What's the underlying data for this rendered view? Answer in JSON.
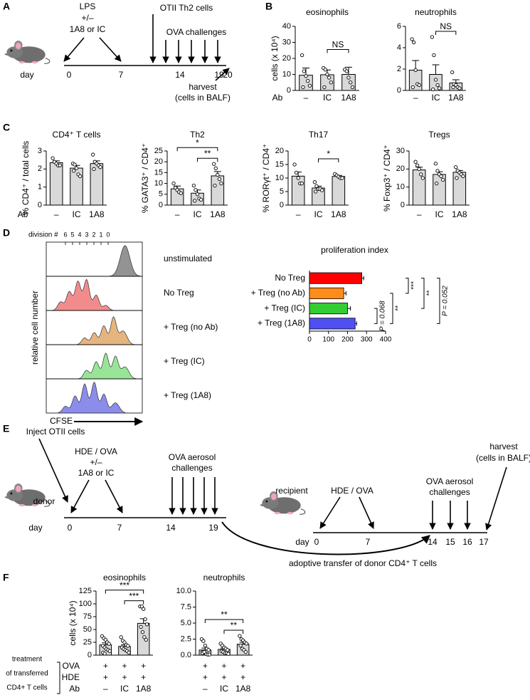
{
  "panel_letters": [
    "A",
    "B",
    "C",
    "D",
    "E",
    "F"
  ],
  "schematic_a": {
    "agent": "LPS",
    "plus_minus": "+/–",
    "treatment": "1A8 or IC",
    "cells": "OTII Th2 cells",
    "challenges": "OVA challenges",
    "day": "day",
    "days": [
      0,
      7,
      14,
      19,
      20
    ],
    "harvest": "harvest",
    "harvest_note": "(cells in BALF)"
  },
  "ab_label_b": "Ab",
  "ab_label_c": "Ab",
  "chart_data": [
    {
      "type": "bar",
      "title": "eosinophils",
      "ylabel": "cells (x 10⁴)",
      "categories": [
        "–",
        "IC",
        "1A8"
      ],
      "values": [
        9.5,
        9.8,
        10
      ],
      "errors": [
        4.5,
        3,
        4.5
      ],
      "points": [
        [
          22,
          12,
          9,
          6,
          3,
          2
        ],
        [
          14,
          13,
          10,
          8,
          5,
          2
        ],
        [
          13,
          12,
          8,
          5,
          2
        ]
      ],
      "ylim": [
        0,
        40
      ],
      "yticks": [
        0,
        10,
        20,
        30,
        40
      ],
      "color": "#d9d9d9",
      "comparisons": [
        {
          "pair": [
            "IC",
            "1A8"
          ],
          "label": "NS"
        }
      ]
    },
    {
      "type": "bar",
      "title": "neutrophils",
      "categories": [
        "–",
        "IC",
        "1A8"
      ],
      "values": [
        1.9,
        1.5,
        0.7
      ],
      "errors": [
        0.9,
        0.9,
        0.3
      ],
      "points": [
        [
          4.8,
          4.5,
          1.9,
          0.6,
          0.5,
          0.3
        ],
        [
          5,
          3.3,
          1,
          0.5,
          0.2,
          0.1
        ],
        [
          1.7,
          0.6,
          0.5,
          0.3,
          0.2,
          0.3
        ]
      ],
      "ylim": [
        0,
        6
      ],
      "yticks": [
        0,
        2,
        4,
        6
      ],
      "color": "#d9d9d9",
      "comparisons": [
        {
          "pair": [
            "IC",
            "1A8"
          ],
          "label": "NS"
        }
      ]
    },
    {
      "type": "bar",
      "title": "CD4⁺ T cells",
      "ylabel": "% CD4⁺ / total cells",
      "categories": [
        "–",
        "IC",
        "1A8"
      ],
      "values": [
        2.35,
        2.05,
        2.3
      ],
      "errors": [
        0.1,
        0.15,
        0.15
      ],
      "points": [
        [
          2.6,
          2.4,
          2.3,
          2.2,
          2.2
        ],
        [
          2.3,
          2.25,
          2.05,
          1.7,
          1.6,
          1.9
        ],
        [
          2.8,
          2.4,
          2.3,
          2.2,
          2.1,
          2.0
        ]
      ],
      "ylim": [
        0,
        3
      ],
      "yticks": [
        0,
        1,
        2,
        3
      ],
      "color": "#d9d9d9",
      "comparisons": []
    },
    {
      "type": "bar",
      "title": "Th2",
      "ylabel": "% GATA3⁺ / CD4⁺",
      "categories": [
        "–",
        "IC",
        "1A8"
      ],
      "values": [
        7.5,
        5.5,
        13.5
      ],
      "errors": [
        1.3,
        1.5,
        2
      ],
      "points": [
        [
          10,
          8,
          7,
          6,
          5.5
        ],
        [
          9,
          7,
          5,
          3,
          2.5,
          2
        ],
        [
          19,
          17,
          14,
          12,
          10,
          9
        ]
      ],
      "ylim": [
        0,
        25
      ],
      "yticks": [
        0,
        5,
        10,
        15,
        20,
        25
      ],
      "color": "#d9d9d9",
      "comparisons": [
        {
          "pair": [
            "IC",
            "1A8"
          ],
          "label": "**"
        },
        {
          "pair": [
            "–",
            "1A8"
          ],
          "label": "*"
        }
      ]
    },
    {
      "type": "bar",
      "title": "Th17",
      "ylabel": "% RORγt⁺ / CD4⁺",
      "categories": [
        "–",
        "IC",
        "1A8"
      ],
      "values": [
        10.7,
        6.3,
        10.6
      ],
      "errors": [
        1.5,
        0.7,
        0.4
      ],
      "points": [
        [
          15,
          12,
          10,
          8,
          8
        ],
        [
          8.5,
          7,
          6,
          6,
          5.5,
          5
        ],
        [
          11.5,
          11,
          10.5,
          10,
          10
        ]
      ],
      "ylim": [
        0,
        20
      ],
      "yticks": [
        0,
        5,
        10,
        15,
        20
      ],
      "color": "#d9d9d9",
      "comparisons": [
        {
          "pair": [
            "IC",
            "1A8"
          ],
          "label": "*"
        }
      ]
    },
    {
      "type": "bar",
      "title": "Tregs",
      "ylabel": "% Foxp3⁺ / CD4⁺",
      "categories": [
        "–",
        "IC",
        "1A8"
      ],
      "values": [
        19.5,
        17,
        18.2
      ],
      "errors": [
        1.5,
        1.5,
        1
      ],
      "points": [
        [
          24,
          22,
          20,
          17,
          15
        ],
        [
          23,
          19,
          17,
          16,
          14,
          12
        ],
        [
          21,
          19,
          18,
          17,
          16,
          15
        ]
      ],
      "ylim": [
        0,
        30
      ],
      "yticks": [
        0,
        10,
        20,
        30
      ],
      "color": "#d9d9d9",
      "comparisons": []
    },
    {
      "type": "hbar",
      "title": "proliferation index",
      "categories": [
        "No Treg",
        "+ Treg (no Ab)",
        "+ Treg (IC)",
        "+ Treg (1A8)"
      ],
      "values": [
        275,
        180,
        200,
        240
      ],
      "errors": [
        10,
        12,
        15,
        8
      ],
      "colors": [
        "#ff0000",
        "#ff8c1a",
        "#33cc33",
        "#5050f0"
      ],
      "xlim": [
        0,
        400
      ],
      "xticks": [
        0,
        100,
        200,
        300,
        400
      ],
      "comparisons": [
        {
          "pair": [
            "+ Treg (IC)",
            "+ Treg (1A8)"
          ],
          "label": "P = 0.068"
        },
        {
          "pair": [
            "+ Treg (no Ab)",
            "+ Treg (1A8)"
          ],
          "label": "**"
        },
        {
          "pair": [
            "No Treg",
            "+ Treg (no Ab)"
          ],
          "label": "***"
        },
        {
          "pair": [
            "No Treg",
            "+ Treg (IC)"
          ],
          "label": "**"
        },
        {
          "pair": [
            "No Treg",
            "+ Treg (1A8)"
          ],
          "label": "P = 0.052"
        }
      ]
    },
    {
      "type": "bar",
      "title": "eosinophils",
      "ylabel": "cells (x 10⁴)",
      "categories": [
        "–",
        "IC",
        "1A8"
      ],
      "rows": [
        [
          "+",
          "+",
          "+"
        ],
        [
          "+",
          "+",
          "+"
        ]
      ],
      "values": [
        20,
        17,
        62
      ],
      "errors": [
        4,
        3,
        9
      ],
      "points": [
        [
          37,
          33,
          30,
          25,
          22,
          18,
          15,
          12,
          10,
          8,
          5,
          3
        ],
        [
          35,
          28,
          25,
          20,
          18,
          15,
          12,
          10,
          8,
          5
        ],
        [
          95,
          95,
          90,
          70,
          60,
          55,
          45,
          35,
          30
        ]
      ],
      "ylim": [
        0,
        125
      ],
      "yticks": [
        0,
        25,
        50,
        75,
        100,
        125
      ],
      "color": "#d9d9d9",
      "comparisons": [
        {
          "pair": [
            "IC",
            "1A8"
          ],
          "label": "***"
        },
        {
          "pair": [
            "–",
            "1A8"
          ],
          "label": "***"
        }
      ]
    },
    {
      "type": "bar",
      "title": "neutrophils",
      "categories": [
        "–",
        "IC",
        "1A8"
      ],
      "rows": [
        [
          "+",
          "+",
          "+"
        ],
        [
          "+",
          "+",
          "+"
        ]
      ],
      "values": [
        0.8,
        0.9,
        1.7
      ],
      "errors": [
        0.3,
        0.2,
        0.3
      ],
      "points": [
        [
          2.5,
          2.2,
          1.5,
          1,
          0.8,
          0.5,
          0.3,
          0.2,
          0.1,
          0.1,
          0.3,
          0.5
        ],
        [
          1.8,
          1.5,
          1.2,
          1,
          0.8,
          0.6,
          0.5,
          0.3,
          0.3,
          0.2
        ],
        [
          3,
          2.5,
          2.3,
          2,
          1.8,
          1.5,
          1,
          0.8,
          0.5
        ]
      ],
      "ylim": [
        0,
        10
      ],
      "yticks": [
        {
          "value": 0,
          "label": "0.0"
        },
        2.5,
        {
          "value": 5,
          "label": "5.0"
        },
        7.5,
        {
          "value": 10,
          "label": "10.0"
        }
      ],
      "color": "#d9d9d9",
      "comparisons": [
        {
          "pair": [
            "IC",
            "1A8"
          ],
          "label": "**"
        },
        {
          "pair": [
            "–",
            "1A8"
          ],
          "label": "**"
        }
      ]
    }
  ],
  "flow_d": {
    "division_label": "division #",
    "divisions": [
      6,
      5,
      4,
      3,
      2,
      1,
      0
    ],
    "ylabel": "relative cell number",
    "xlabel": "CFSE",
    "rows": [
      {
        "label": "unstimulated",
        "color": "#808080"
      },
      {
        "label": "No Treg",
        "color": "#f07878"
      },
      {
        "label": "+ Treg (no Ab)",
        "color": "#e0a86a"
      },
      {
        "label": "+ Treg (IC)",
        "color": "#86e086"
      },
      {
        "label": "+ Treg (1A8)",
        "color": "#7878e8"
      }
    ]
  },
  "schematic_e": {
    "inject": "Inject OTII cells",
    "agent": "HDE / OVA",
    "plus_minus": "+/–",
    "treatment": "1A8 or IC",
    "challenges_1": "OVA aerosol",
    "challenges_2": "challenges",
    "donor": "donor",
    "day_donor": "day",
    "donor_days": [
      0,
      7,
      14,
      19
    ],
    "recipient": "recipient",
    "recipient_agent": "HDE / OVA",
    "r_challenges_1": "OVA aerosol",
    "r_challenges_2": "challenges",
    "harvest": "harvest",
    "harvest_note": "(cells in BALF)",
    "day_recipient": "day",
    "recipient_days": [
      0,
      7,
      14,
      15,
      16,
      17
    ],
    "transfer": "adoptive transfer of donor CD4⁺ T cells"
  },
  "table_f": {
    "caption": [
      "treatment",
      "of transferred",
      "CD4+ T cells"
    ],
    "row_labels": [
      "OVA",
      "HDE",
      "Ab"
    ]
  }
}
